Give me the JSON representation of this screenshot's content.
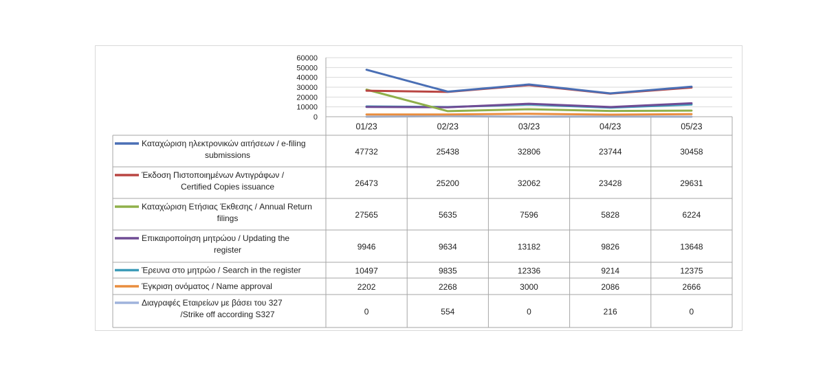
{
  "chart_data": {
    "type": "line",
    "categories": [
      "01/23",
      "02/23",
      "03/23",
      "04/23",
      "05/23"
    ],
    "ylim": [
      0,
      60000
    ],
    "yticks": [
      0,
      10000,
      20000,
      30000,
      40000,
      50000,
      60000
    ],
    "grid": true,
    "legend": "table-left",
    "series": [
      {
        "name_lines": [
          "Καταχώριση ηλεκτρονικών αιτήσεων / e-filing",
          "submissions"
        ],
        "color": "#4a6fb5",
        "values": [
          47732,
          25438,
          32806,
          23744,
          30458
        ]
      },
      {
        "name_lines": [
          "Έκδοση Πιστοποιημένων Αντιγράφων /",
          "Certified Copies issuance"
        ],
        "color": "#b94542",
        "values": [
          26473,
          25200,
          32062,
          23428,
          29631
        ]
      },
      {
        "name_lines": [
          "Καταχώριση Ετήσιας Έκθεσης / Annual Return",
          "filings"
        ],
        "color": "#8fb04a",
        "values": [
          27565,
          5635,
          7596,
          5828,
          6224
        ]
      },
      {
        "name_lines": [
          "Επικαιροποίηση μητρώου / Updating the",
          "register"
        ],
        "color": "#6f4b94",
        "values": [
          9946,
          9634,
          13182,
          9826,
          13648
        ]
      },
      {
        "name_lines": [
          "Έρευνα στο μητρώο / Search in the register"
        ],
        "color": "#3c9bb8",
        "values": [
          10497,
          9835,
          12336,
          9214,
          12375
        ]
      },
      {
        "name_lines": [
          "Έγκριση ονόματος / Name approval"
        ],
        "color": "#e98d3e",
        "values": [
          2202,
          2268,
          3000,
          2086,
          2666
        ]
      },
      {
        "name_lines": [
          "Διαγραφές Εταιρείων με βάσει του 327",
          "/Strike off according S327"
        ],
        "color": "#9fb3dc",
        "values": [
          0,
          554,
          0,
          216,
          0
        ]
      }
    ]
  }
}
